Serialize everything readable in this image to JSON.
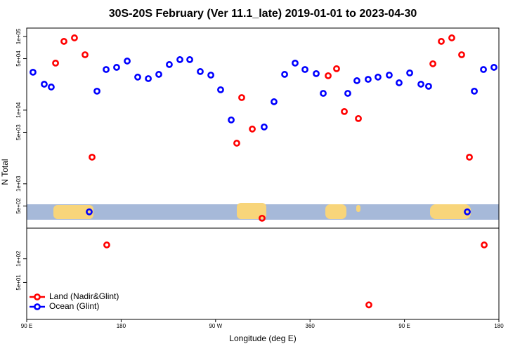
{
  "chart_data": [
    {
      "type": "scatter",
      "title": "30S-20S February (Ver 11.1_late)   2019-01-01 to 2023-04-30",
      "ylabel": "N Total",
      "log_y": true,
      "xlim": [
        90,
        540
      ],
      "ylim": [
        250,
        130000
      ],
      "yticks": [
        {
          "value": 100000,
          "label": "1e+05"
        },
        {
          "value": 50000,
          "label": "5e+04"
        },
        {
          "value": 10000,
          "label": "1e+04"
        },
        {
          "value": 5000,
          "label": "5e+03"
        },
        {
          "value": 1000,
          "label": "1e+03"
        },
        {
          "value": 500,
          "label": "5e+02"
        }
      ],
      "legend": "bottom left",
      "series": [
        {
          "name": "Land (Nadir&Glint)",
          "color": "#ff0000",
          "x": [
            117.5,
            125.5,
            135.5,
            145.6,
            152.3,
            290.2,
            294.9,
            305.0,
            314.3,
            377.3,
            385.3,
            392.7,
            406.1,
            477.1,
            485.1,
            495.1,
            504.5,
            511.9
          ],
          "values": [
            43500,
            85800,
            95700,
            56500,
            2300,
            3560,
            14800,
            5540,
            341,
            29300,
            36500,
            9570,
            7690,
            42600,
            85800,
            95700,
            56500,
            2300
          ]
        },
        {
          "name": "Ocean (Glint)",
          "color": "#0000ff",
          "x": [
            96.0,
            106.7,
            113.4,
            149.6,
            157.0,
            165.7,
            175.7,
            185.8,
            195.8,
            205.9,
            215.9,
            225.9,
            236.0,
            245.4,
            255.4,
            265.5,
            274.8,
            284.9,
            316.3,
            325.7,
            335.8,
            345.8,
            355.2,
            365.9,
            372.6,
            396.0,
            404.7,
            415.4,
            424.8,
            435.5,
            444.9,
            455.0,
            465.7,
            473.0,
            509.9,
            516.6,
            525.3,
            535.3
          ],
          "values": [
            32700,
            22500,
            20600,
            416,
            18100,
            35600,
            38100,
            46400,
            28100,
            26800,
            30600,
            41600,
            48500,
            48500,
            33400,
            29900,
            18900,
            7360,
            5910,
            13000,
            30600,
            43500,
            35600,
            31300,
            16900,
            16900,
            25100,
            26200,
            28100,
            29900,
            23500,
            32000,
            22500,
            21100,
            416,
            18100,
            35600,
            38100
          ]
        }
      ]
    },
    {
      "type": "scatter",
      "xlabel": "Longitude (deg E)",
      "log_y": true,
      "xlim": [
        90,
        540
      ],
      "ylim": [
        17,
        245
      ],
      "yticks": [
        {
          "value": 100,
          "label": "1e+02"
        },
        {
          "value": 50,
          "label": "5e+01"
        }
      ],
      "xticks": [
        {
          "value": 90,
          "label": "90 E"
        },
        180,
        {
          "value": 270,
          "label": "90 W"
        },
        360,
        {
          "value": 450,
          "label": "90 E"
        },
        {
          "value": 540,
          "label": "180"
        }
      ],
      "series": [
        {
          "color": "#ff0000",
          "x": [
            166.3,
            416.1,
            526.0
          ],
          "values": [
            150,
            26,
            150
          ]
        }
      ]
    }
  ]
}
